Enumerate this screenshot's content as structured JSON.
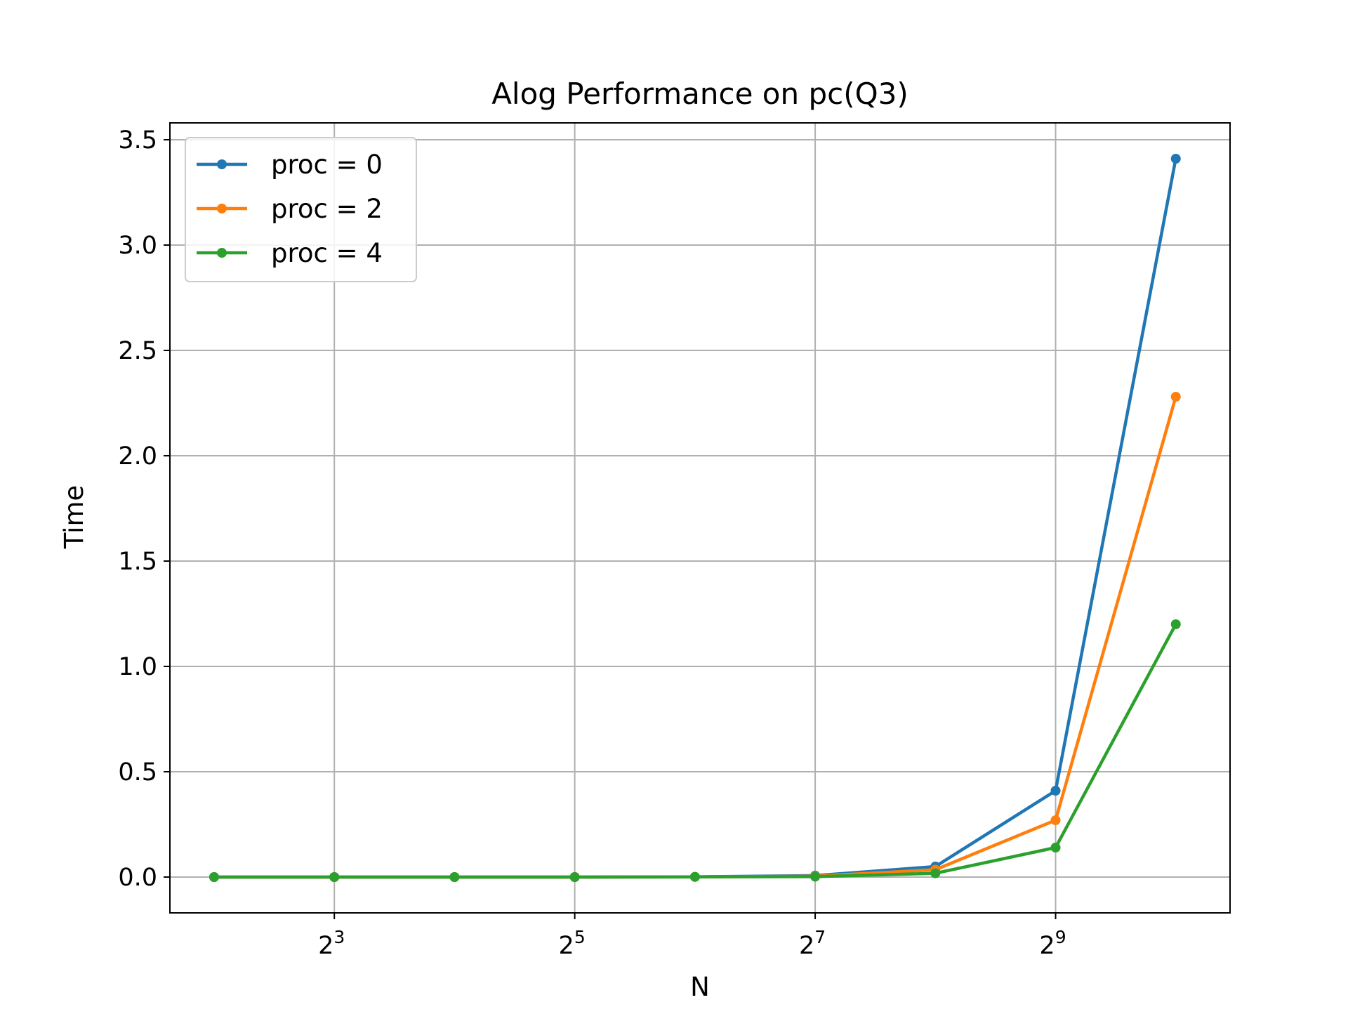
{
  "chart_data": {
    "type": "line",
    "title": "Alog Performance on pc(Q3)",
    "xlabel": "N",
    "ylabel": "Time",
    "x_scale": "log2",
    "x": [
      4,
      8,
      16,
      32,
      64,
      128,
      256,
      512,
      1024
    ],
    "xlim": [
      3.1,
      1400
    ],
    "ylim": [
      -0.17,
      3.58
    ],
    "x_ticks": [
      {
        "value": 8,
        "base": "2",
        "exp": "3"
      },
      {
        "value": 32,
        "base": "2",
        "exp": "5"
      },
      {
        "value": 128,
        "base": "2",
        "exp": "7"
      },
      {
        "value": 512,
        "base": "2",
        "exp": "9"
      }
    ],
    "y_ticks": [
      {
        "value": 0.0,
        "label": "0.0"
      },
      {
        "value": 0.5,
        "label": "0.5"
      },
      {
        "value": 1.0,
        "label": "1.0"
      },
      {
        "value": 1.5,
        "label": "1.5"
      },
      {
        "value": 2.0,
        "label": "2.0"
      },
      {
        "value": 2.5,
        "label": "2.5"
      },
      {
        "value": 3.0,
        "label": "3.0"
      },
      {
        "value": 3.5,
        "label": "3.5"
      }
    ],
    "grid": true,
    "legend_position": "top-left",
    "series": [
      {
        "name": "proc = 0",
        "color": "#1f77b4",
        "values": [
          0.0,
          0.0,
          0.0,
          0.0,
          0.001,
          0.007,
          0.05,
          0.41,
          3.41
        ]
      },
      {
        "name": "proc = 2",
        "color": "#ff7f0e",
        "values": [
          0.0,
          0.0,
          0.0,
          0.0,
          0.001,
          0.004,
          0.035,
          0.27,
          2.28
        ]
      },
      {
        "name": "proc = 4",
        "color": "#2ca02c",
        "values": [
          0.0,
          0.0,
          0.0,
          0.0,
          0.001,
          0.002,
          0.018,
          0.14,
          1.2
        ]
      }
    ]
  }
}
